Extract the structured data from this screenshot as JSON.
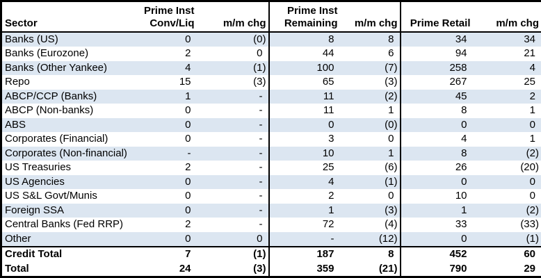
{
  "colors": {
    "stripe": "#DCE6F1",
    "border": "#000000",
    "background": "#FFFFFF",
    "text": "#000000"
  },
  "chart_data": {
    "type": "table",
    "columns": [
      {
        "id": "sector",
        "label_lines": [
          "Sector"
        ],
        "align": "left"
      },
      {
        "id": "prime_inst_conv_liq",
        "label_lines": [
          "Prime Inst",
          "Conv/Liq"
        ],
        "align": "right"
      },
      {
        "id": "conv_liq_mm_chg",
        "label_lines": [
          "m/m chg"
        ],
        "align": "right"
      },
      {
        "id": "prime_inst_remaining",
        "label_lines": [
          "Prime Inst",
          "Remaining"
        ],
        "align": "right"
      },
      {
        "id": "remaining_mm_chg",
        "label_lines": [
          "m/m chg"
        ],
        "align": "right"
      },
      {
        "id": "prime_retail",
        "label_lines": [
          "Prime Retail"
        ],
        "align": "right"
      },
      {
        "id": "retail_mm_chg",
        "label_lines": [
          "m/m chg"
        ],
        "align": "right"
      }
    ],
    "rows": [
      {
        "cells": [
          "Banks (US)",
          "0",
          "(0)",
          "8",
          "8",
          "34",
          "34"
        ]
      },
      {
        "cells": [
          "Banks (Eurozone)",
          "2",
          "0",
          "44",
          "6",
          "94",
          "21"
        ]
      },
      {
        "cells": [
          "Banks (Other Yankee)",
          "4",
          "(1)",
          "100",
          "(7)",
          "258",
          "4"
        ]
      },
      {
        "cells": [
          "Repo",
          "15",
          "(3)",
          "65",
          "(3)",
          "267",
          "25"
        ]
      },
      {
        "cells": [
          "ABCP/CCP (Banks)",
          "1",
          "-",
          "11",
          "(2)",
          "45",
          "2"
        ]
      },
      {
        "cells": [
          "ABCP (Non-banks)",
          "0",
          "-",
          "11",
          "1",
          "8",
          "1"
        ]
      },
      {
        "cells": [
          "ABS",
          "0",
          "-",
          "0",
          "(0)",
          "0",
          "0"
        ]
      },
      {
        "cells": [
          "Corporates (Financial)",
          "0",
          "-",
          "3",
          "0",
          "4",
          "1"
        ]
      },
      {
        "cells": [
          "Corporates (Non-financial)",
          "-",
          "-",
          "10",
          "1",
          "8",
          "(2)"
        ]
      },
      {
        "cells": [
          "US Treasuries",
          "2",
          "-",
          "25",
          "(6)",
          "26",
          "(20)"
        ]
      },
      {
        "cells": [
          "US Agencies",
          "0",
          "-",
          "4",
          "(1)",
          "0",
          "0"
        ]
      },
      {
        "cells": [
          "US S&L Govt/Munis",
          "0",
          "-",
          "2",
          "0",
          "10",
          "0"
        ]
      },
      {
        "cells": [
          "Foreign SSA",
          "0",
          "-",
          "1",
          "(3)",
          "1",
          "(2)"
        ]
      },
      {
        "cells": [
          "Central Banks (Fed RRP)",
          "2",
          "-",
          "72",
          "(4)",
          "33",
          "(33)"
        ]
      },
      {
        "cells": [
          "Other",
          "0",
          "0",
          "-",
          "(12)",
          "0",
          "(1)"
        ]
      }
    ],
    "total_rows": [
      {
        "cells": [
          "Credit Total",
          "7",
          "(1)",
          "187",
          "8",
          "452",
          "60"
        ]
      },
      {
        "cells": [
          "Total",
          "24",
          "(3)",
          "359",
          "(21)",
          "790",
          "29"
        ]
      }
    ],
    "layout_hints": {
      "stripe_pattern": "odd data rows shaded light blue starting with first row",
      "section_separators_after_columns": [
        "conv_liq_mm_chg",
        "remaining_mm_chg"
      ],
      "total_rows_bold": true
    }
  }
}
